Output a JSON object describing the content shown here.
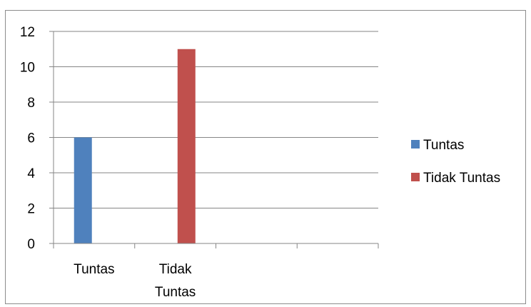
{
  "chart_data": {
    "type": "bar",
    "categories": [
      "Tuntas",
      "Tidak Tuntas",
      "",
      ""
    ],
    "category_lines": [
      [
        "Tuntas"
      ],
      [
        "Tidak",
        "Tuntas"
      ],
      [],
      []
    ],
    "series": [
      {
        "name": "Tuntas",
        "values": [
          6,
          null,
          null,
          null
        ],
        "color": "#4f81bd"
      },
      {
        "name": "Tidak Tuntas",
        "values": [
          null,
          11,
          null,
          null
        ],
        "color": "#c0504d"
      }
    ],
    "ylim": [
      0,
      12
    ],
    "yticks": [
      0,
      2,
      4,
      6,
      8,
      10,
      12
    ],
    "title": "",
    "xlabel": "",
    "ylabel": "",
    "grid": true,
    "legend": "right"
  }
}
